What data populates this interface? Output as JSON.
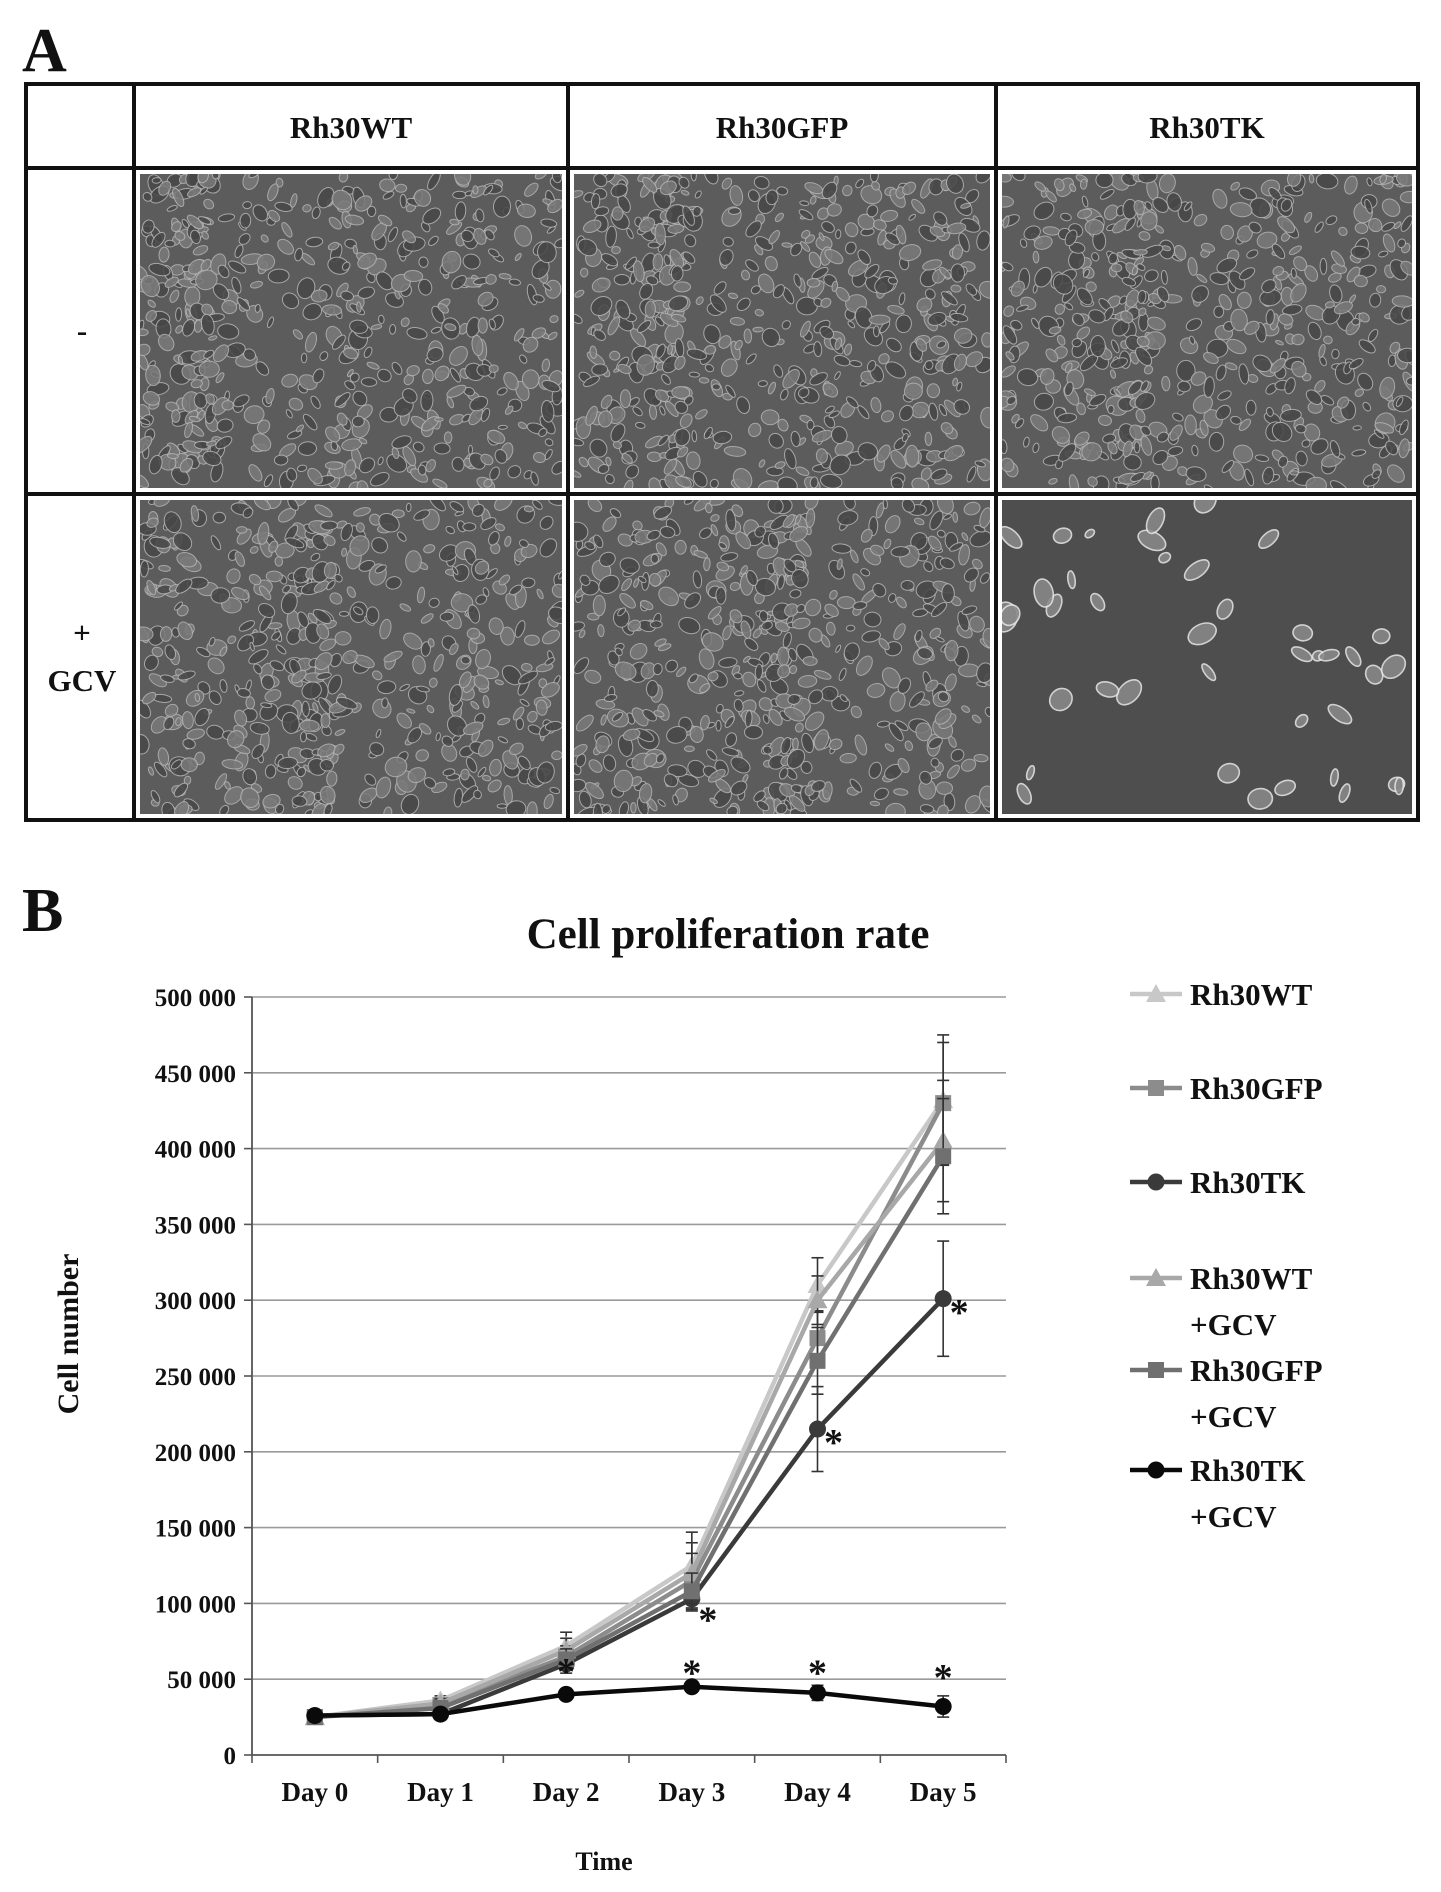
{
  "panel_a": {
    "letter": "A",
    "columns": [
      "Rh30WT",
      "Rh30GFP",
      "Rh30TK"
    ],
    "rows": [
      {
        "label_top": "-",
        "label_bottom": ""
      },
      {
        "label_top": "+",
        "label_bottom": "GCV"
      }
    ]
  },
  "panel_b": {
    "letter": "B"
  },
  "chart_data": {
    "type": "line",
    "title": "Cell proliferation rate",
    "xlabel": "Time",
    "ylabel": "Cell number",
    "categories": [
      "Day 0",
      "Day 1",
      "Day 2",
      "Day 3",
      "Day 4",
      "Day 5"
    ],
    "ylim": [
      0,
      500000
    ],
    "yticks": [
      0,
      50000,
      100000,
      150000,
      200000,
      250000,
      300000,
      350000,
      400000,
      450000,
      500000
    ],
    "ytick_labels": [
      "0",
      "50 000",
      "100 000",
      "150 000",
      "200 000",
      "250 000",
      "300 000",
      "350 000",
      "400 000",
      "450 000",
      "500 000"
    ],
    "grid": true,
    "legend_position": "right",
    "series": [
      {
        "name": "Rh30WT",
        "name_lines": [
          "Rh30WT"
        ],
        "marker": "triangle",
        "color": "#c8c8c8",
        "values": [
          25000,
          36000,
          72000,
          125000,
          310000,
          432000
        ],
        "errors": [
          2000,
          3000,
          9000,
          22000,
          18000,
          43000
        ]
      },
      {
        "name": "Rh30GFP",
        "name_lines": [
          "Rh30GFP"
        ],
        "marker": "square",
        "color": "#8c8c8c",
        "values": [
          25000,
          33000,
          65000,
          115000,
          275000,
          430000
        ],
        "errors": [
          2000,
          3000,
          7000,
          18000,
          18000,
          40000
        ]
      },
      {
        "name": "Rh30TK",
        "name_lines": [
          "Rh30TK"
        ],
        "marker": "circle",
        "color": "#3a3a3a",
        "values": [
          26000,
          27000,
          60000,
          103000,
          215000,
          301000
        ],
        "errors": [
          2000,
          2000,
          6000,
          8000,
          28000,
          38000
        ]
      },
      {
        "name": "Rh30WT +GCV",
        "name_lines": [
          "Rh30WT",
          "+GCV"
        ],
        "marker": "triangle",
        "color": "#a8a8a8",
        "values": [
          25000,
          34000,
          69000,
          120000,
          300000,
          405000
        ],
        "errors": [
          2000,
          3000,
          8000,
          20000,
          16000,
          40000
        ]
      },
      {
        "name": "Rh30GFP +GCV",
        "name_lines": [
          "Rh30GFP",
          "+GCV"
        ],
        "marker": "square",
        "color": "#707070",
        "values": [
          25000,
          31000,
          63000,
          108000,
          260000,
          395000
        ],
        "errors": [
          2000,
          3000,
          7000,
          12000,
          22000,
          38000
        ]
      },
      {
        "name": "Rh30TK +GCV",
        "name_lines": [
          "Rh30TK",
          "+GCV"
        ],
        "marker": "circle",
        "color": "#0a0a0a",
        "values": [
          26000,
          27000,
          40000,
          45000,
          41000,
          32000
        ],
        "errors": [
          2000,
          2000,
          3000,
          3000,
          5000,
          7000
        ]
      }
    ],
    "annotations": [
      {
        "text": "*",
        "x": "Day 2",
        "y": 56000
      },
      {
        "text": "*",
        "x": "Day 3",
        "y": 90000
      },
      {
        "text": "*",
        "x": "Day 4",
        "y": 207000
      },
      {
        "text": "*",
        "x": "Day 5",
        "y": 293000
      },
      {
        "text": "*",
        "x": "Day 3",
        "y": 55000
      },
      {
        "text": "*",
        "x": "Day 4",
        "y": 55000
      },
      {
        "text": "*",
        "x": "Day 5",
        "y": 52000
      }
    ]
  }
}
